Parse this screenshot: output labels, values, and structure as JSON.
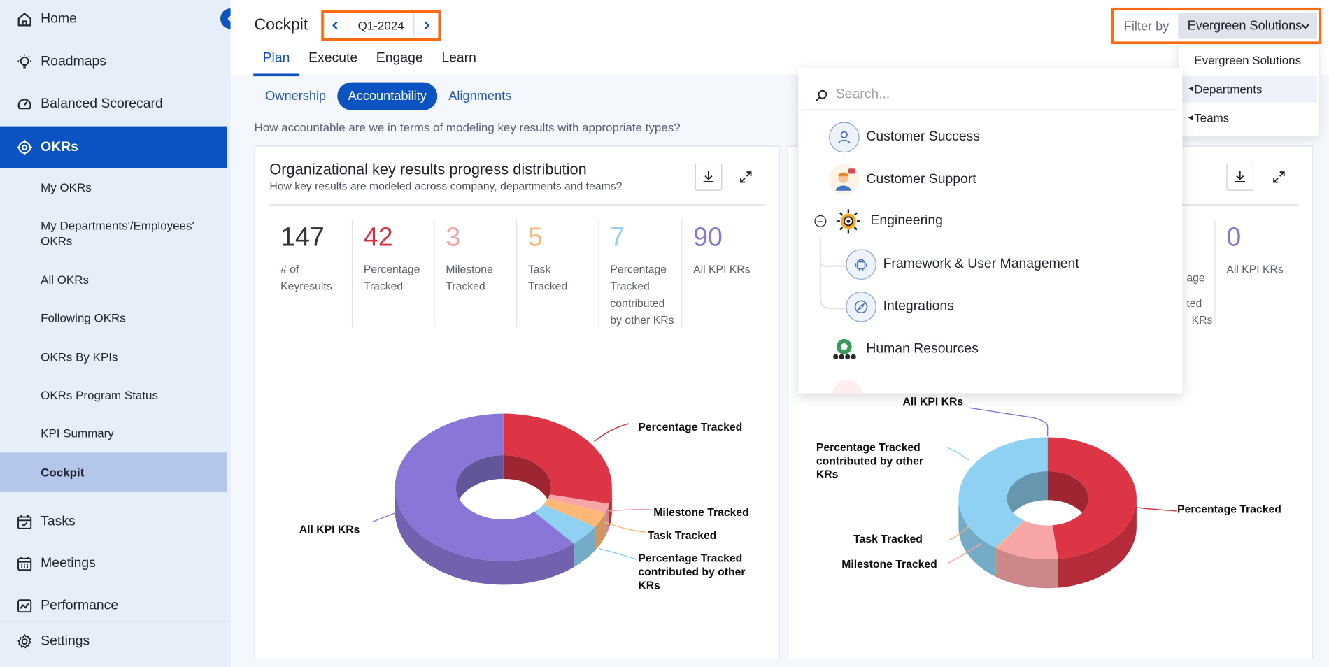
{
  "sidebar": {
    "collapse_icon": "chevron-left-icon",
    "items": [
      {
        "label": "Home",
        "icon": "home-icon"
      },
      {
        "label": "Roadmaps",
        "icon": "lightbulb-icon"
      },
      {
        "label": "Balanced Scorecard",
        "icon": "gauge-icon"
      },
      {
        "label": "OKRs",
        "icon": "target-icon"
      },
      {
        "label": "Tasks",
        "icon": "calendar-check-icon"
      },
      {
        "label": "Meetings",
        "icon": "calendar-grid-icon"
      },
      {
        "label": "Performance",
        "icon": "chart-line-icon"
      },
      {
        "label": "Settings",
        "icon": "gear-icon"
      }
    ],
    "okr_subitems": [
      "My OKRs",
      "My Departments'/Employees' OKRs",
      "All OKRs",
      "Following OKRs",
      "OKRs By KPIs",
      "OKRs Program Status",
      "KPI Summary",
      "Cockpit"
    ]
  },
  "header": {
    "title": "Cockpit",
    "period": "Q1-2024",
    "tabs": [
      "Plan",
      "Execute",
      "Engage",
      "Learn"
    ],
    "active_tab": "Plan",
    "filter_label": "Filter by",
    "filter_value": "Evergreen Solutions"
  },
  "subtabs": [
    "Ownership",
    "Accountability",
    "Alignments"
  ],
  "active_subtab": "Accountability",
  "question": "How accountable are we in terms of modeling key results with appropriate types?",
  "filter_dropdown": {
    "options": [
      "Evergreen Solutions",
      "Departments",
      "Teams"
    ],
    "highlighted": "Departments"
  },
  "tree_popup": {
    "search_placeholder": "Search...",
    "nodes": [
      "Customer Success",
      "Customer Support",
      "Engineering",
      "Framework & User Management",
      "Integrations",
      "Human Resources"
    ]
  },
  "card1": {
    "title": "Organizational key results progress distribution",
    "subtitle": "How key results are modeled across company, departments and teams?",
    "stats": [
      {
        "value": "147",
        "label": "# of Keyresults",
        "color": "#333333"
      },
      {
        "value": "42",
        "label": "Percentage Tracked",
        "color": "#d8303f"
      },
      {
        "value": "3",
        "label": "Milestone Tracked",
        "color": "#f3a3a8"
      },
      {
        "value": "5",
        "label": "Task Tracked",
        "color": "#f7b97a"
      },
      {
        "value": "7",
        "label": "Percentage Tracked contributed by other KRs",
        "color": "#8fd1f3"
      },
      {
        "value": "90",
        "label": "All KPI KRs",
        "color": "#8a76d6"
      }
    ]
  },
  "card2": {
    "stat_fragments": [
      "age",
      "ted",
      "KRs"
    ],
    "stats": [
      {
        "value": "0",
        "label": "All KPI KRs",
        "color": "#8a76d6"
      }
    ]
  },
  "chart_data": [
    {
      "type": "pie",
      "categories": [
        "Percentage Tracked",
        "Milestone Tracked",
        "Task Tracked",
        "Percentage Tracked contributed by other KRs",
        "All KPI KRs"
      ],
      "values": [
        42,
        3,
        5,
        7,
        90
      ],
      "colors": [
        "#dc3545",
        "#f8a5a8",
        "#fbb877",
        "#8fd1f3",
        "#8a76d6"
      ],
      "donut": true,
      "legend": "none"
    },
    {
      "type": "pie",
      "categories": [
        "Percentage Tracked",
        "Milestone Tracked",
        "Task Tracked",
        "Percentage Tracked contributed by other KRs",
        "All KPI KRs"
      ],
      "values": [
        42,
        10,
        0.3,
        35,
        0
      ],
      "colors": [
        "#dc3545",
        "#f8a5a8",
        "#fbb877",
        "#8fd1f3",
        "#8a76d6"
      ],
      "donut": true,
      "legend": "none"
    }
  ]
}
